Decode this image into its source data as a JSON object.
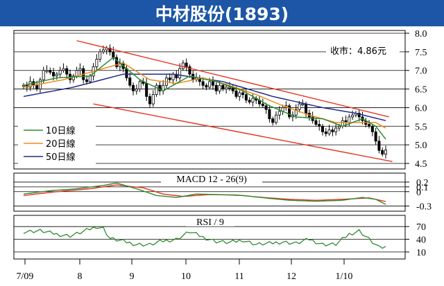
{
  "title": "中材股份(1893)",
  "close_label": "收市：4.86元",
  "colors": {
    "banner": "#1d56a6",
    "candle": "#000000",
    "ma10": "#2e8b2e",
    "ma20": "#f08a1e",
    "ma50": "#1f2a8c",
    "channel": "#e8321e",
    "macd": "#2e8b2e",
    "signal": "#e8321e",
    "rsi": "#2e8b2e",
    "grid": "#000000"
  },
  "chart_data": [
    {
      "type": "candlestick",
      "name": "price",
      "x_ticks": [
        "7/09",
        "8",
        "9",
        "10",
        "11",
        "12",
        "1/10"
      ],
      "ylim": [
        4.5,
        8.0
      ],
      "y_ticks": [
        "4.5",
        "5.0",
        "5.5",
        "6.0",
        "6.5",
        "7.0",
        "7.5",
        "8.0"
      ],
      "legend": [
        "10日線",
        "20日線",
        "50日線"
      ],
      "closes": [
        6.6,
        6.55,
        6.7,
        6.6,
        6.5,
        6.75,
        7.0,
        7.0,
        6.95,
        6.85,
        6.9,
        7.0,
        7.05,
        6.9,
        6.75,
        6.85,
        7.0,
        7.05,
        6.75,
        6.7,
        6.85,
        7.1,
        7.3,
        7.5,
        7.55,
        7.6,
        7.5,
        7.35,
        7.1,
        7.2,
        7.05,
        6.8,
        6.6,
        6.45,
        6.5,
        6.7,
        6.65,
        6.3,
        6.1,
        6.35,
        6.6,
        6.45,
        6.6,
        6.8,
        6.75,
        6.9,
        6.8,
        7.05,
        7.2,
        7.1,
        6.9,
        6.75,
        6.8,
        6.7,
        6.6,
        6.55,
        6.7,
        6.6,
        6.45,
        6.6,
        6.5,
        6.55,
        6.55,
        6.45,
        6.3,
        6.4,
        6.35,
        6.2,
        6.15,
        6.25,
        6.2,
        6.1,
        6.05,
        5.95,
        5.7,
        5.6,
        5.8,
        5.9,
        6.0,
        6.05,
        5.75,
        5.8,
        5.95,
        6.1,
        6.1,
        5.85,
        5.75,
        5.65,
        5.55,
        5.5,
        5.35,
        5.3,
        5.4,
        5.35,
        5.45,
        5.5,
        5.65,
        5.6,
        5.75,
        5.8,
        5.85,
        5.75,
        5.65,
        5.55,
        5.5,
        5.35,
        5.1,
        4.85,
        4.75,
        4.86
      ],
      "ma10_anchors": [
        [
          0,
          6.6
        ],
        [
          10,
          6.8
        ],
        [
          20,
          6.85
        ],
        [
          27,
          7.35
        ],
        [
          35,
          6.75
        ],
        [
          42,
          6.45
        ],
        [
          50,
          6.85
        ],
        [
          58,
          6.7
        ],
        [
          66,
          6.45
        ],
        [
          74,
          6.05
        ],
        [
          82,
          5.75
        ],
        [
          90,
          5.7
        ],
        [
          96,
          5.5
        ],
        [
          102,
          5.7
        ],
        [
          106,
          5.5
        ],
        [
          109,
          5.15
        ]
      ],
      "ma20_anchors": [
        [
          0,
          6.55
        ],
        [
          12,
          6.75
        ],
        [
          24,
          7.05
        ],
        [
          30,
          7.2
        ],
        [
          38,
          6.75
        ],
        [
          46,
          6.65
        ],
        [
          54,
          6.8
        ],
        [
          62,
          6.6
        ],
        [
          70,
          6.35
        ],
        [
          78,
          6.05
        ],
        [
          86,
          5.8
        ],
        [
          94,
          5.6
        ],
        [
          100,
          5.6
        ],
        [
          106,
          5.6
        ],
        [
          109,
          5.45
        ]
      ],
      "ma50_anchors": [
        [
          0,
          6.3
        ],
        [
          15,
          6.55
        ],
        [
          30,
          6.9
        ],
        [
          45,
          6.9
        ],
        [
          60,
          6.7
        ],
        [
          75,
          6.3
        ],
        [
          90,
          6.0
        ],
        [
          100,
          5.85
        ],
        [
          109,
          5.65
        ]
      ],
      "channel_upper": [
        [
          16,
          7.8
        ],
        [
          110,
          5.75
        ]
      ],
      "channel_lower": [
        [
          21,
          6.1
        ],
        [
          111,
          4.55
        ]
      ]
    },
    {
      "type": "line",
      "name": "macd",
      "title": "MACD 12 - 26(9)",
      "ylim": [
        -0.35,
        0.3
      ],
      "y_ticks": [
        "0.2",
        "0.1",
        "0",
        "-0.3"
      ],
      "macd_anchors": [
        [
          0,
          -0.05
        ],
        [
          8,
          0.02
        ],
        [
          16,
          0.06
        ],
        [
          24,
          0.13
        ],
        [
          28,
          0.18
        ],
        [
          34,
          0.06
        ],
        [
          40,
          -0.08
        ],
        [
          46,
          -0.12
        ],
        [
          52,
          -0.05
        ],
        [
          58,
          -0.06
        ],
        [
          66,
          -0.08
        ],
        [
          74,
          -0.14
        ],
        [
          80,
          -0.18
        ],
        [
          88,
          -0.2
        ],
        [
          96,
          -0.18
        ],
        [
          102,
          -0.12
        ],
        [
          106,
          -0.16
        ],
        [
          110,
          -0.3
        ]
      ],
      "signal_anchors": [
        [
          0,
          -0.08
        ],
        [
          10,
          0.0
        ],
        [
          20,
          0.06
        ],
        [
          28,
          0.14
        ],
        [
          36,
          0.08
        ],
        [
          42,
          -0.05
        ],
        [
          48,
          -0.1
        ],
        [
          56,
          -0.06
        ],
        [
          64,
          -0.07
        ],
        [
          72,
          -0.12
        ],
        [
          80,
          -0.16
        ],
        [
          88,
          -0.18
        ],
        [
          96,
          -0.16
        ],
        [
          104,
          -0.13
        ],
        [
          110,
          -0.22
        ]
      ]
    },
    {
      "type": "line",
      "name": "rsi",
      "title": "RSI / 9",
      "ylim": [
        0,
        85
      ],
      "y_ticks": [
        "70",
        "40",
        "10"
      ],
      "rsi_anchors": [
        [
          0,
          58
        ],
        [
          5,
          60
        ],
        [
          10,
          52
        ],
        [
          14,
          48
        ],
        [
          18,
          58
        ],
        [
          22,
          70
        ],
        [
          24,
          66
        ],
        [
          26,
          42
        ],
        [
          30,
          35
        ],
        [
          34,
          28
        ],
        [
          38,
          27
        ],
        [
          42,
          36
        ],
        [
          46,
          40
        ],
        [
          50,
          58
        ],
        [
          54,
          45
        ],
        [
          58,
          35
        ],
        [
          62,
          32
        ],
        [
          66,
          38
        ],
        [
          70,
          28
        ],
        [
          74,
          30
        ],
        [
          78,
          34
        ],
        [
          82,
          30
        ],
        [
          86,
          40
        ],
        [
          90,
          28
        ],
        [
          94,
          28
        ],
        [
          98,
          52
        ],
        [
          101,
          60
        ],
        [
          104,
          40
        ],
        [
          107,
          20
        ],
        [
          110,
          22
        ]
      ]
    }
  ]
}
